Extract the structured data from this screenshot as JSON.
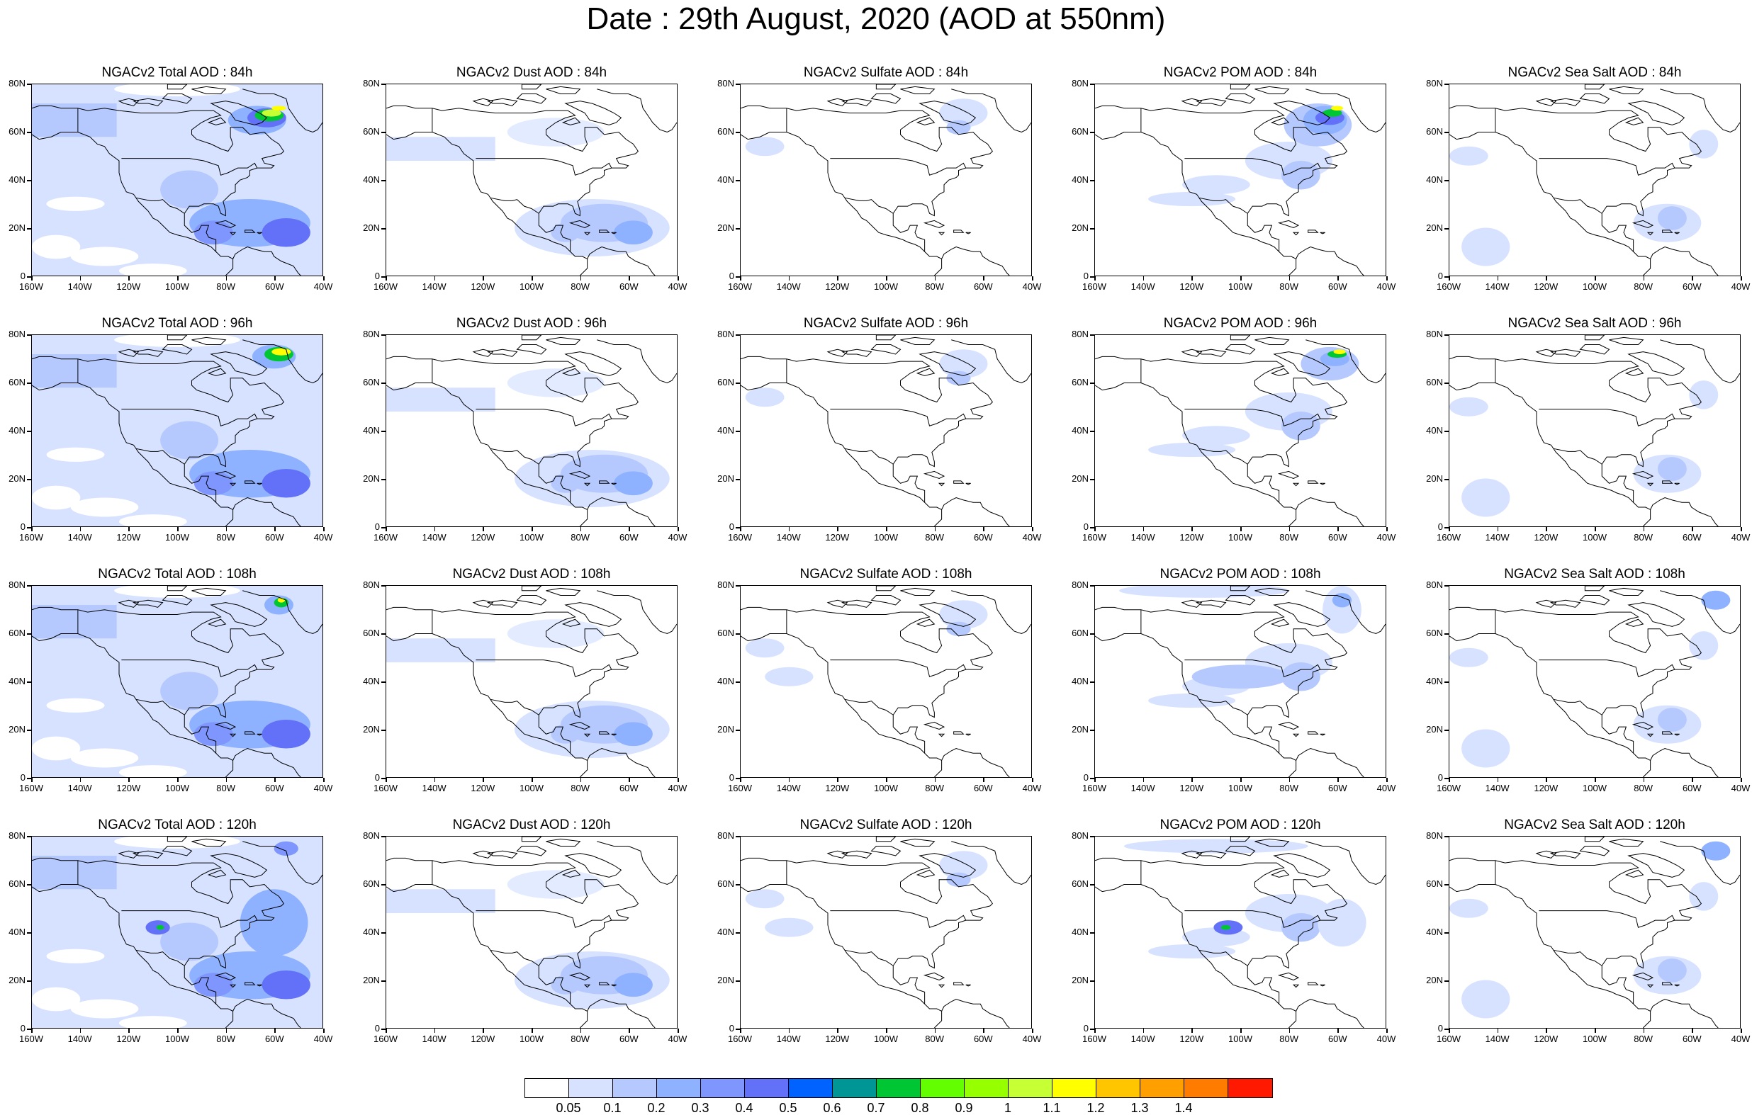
{
  "title": "Date : 29th August, 2020 (AOD at 550nm)",
  "columns": [
    "Total",
    "Dust",
    "Sulfate",
    "POM",
    "SeaSalt"
  ],
  "rows": [
    "84h",
    "96h",
    "108h",
    "120h"
  ],
  "panel_titles": [
    [
      "NGACv2 Total AOD : 84h",
      "NGACv2 Dust AOD : 84h",
      "NGACv2 Sulfate AOD : 84h",
      "NGACv2 POM AOD : 84h",
      "NGACv2 Sea Salt AOD : 84h"
    ],
    [
      "NGACv2 Total AOD : 96h",
      "NGACv2 Dust AOD : 96h",
      "NGACv2 Sulfate AOD : 96h",
      "NGACv2 POM AOD : 96h",
      "NGACv2 Sea Salt AOD : 96h"
    ],
    [
      "NGACv2 Total AOD : 108h",
      "NGACv2 Dust AOD : 108h",
      "NGACv2 Sulfate AOD : 108h",
      "NGACv2 POM AOD : 108h",
      "NGACv2 Sea Salt AOD : 108h"
    ],
    [
      "NGACv2 Total AOD : 120h",
      "NGACv2 Dust AOD : 120h",
      "NGACv2 Sulfate AOD : 120h",
      "NGACv2 POM AOD : 120h",
      "NGACv2 Sea Salt  AOD : 120h"
    ]
  ],
  "lat_labels": [
    "80N",
    "60N",
    "40N",
    "20N",
    "0"
  ],
  "lon_labels_a": [
    "160W",
    "140W",
    "120W",
    "100W",
    "80W",
    "60W",
    "40W"
  ],
  "lon_labels_b": [
    "160W",
    "140W",
    "120W",
    "100W",
    "80W",
    "60W",
    "40W"
  ],
  "colorbar": {
    "colors": [
      "#ffffff",
      "#d6e2ff",
      "#b5c9ff",
      "#8eb2ff",
      "#7f96ff",
      "#6370f8",
      "#0063ff",
      "#009696",
      "#00c633",
      "#63ff00",
      "#96ff00",
      "#c6ff33",
      "#ffff00",
      "#ffc600",
      "#ffa000",
      "#ff7c00",
      "#ff1900"
    ],
    "labels": [
      "0.05",
      "0.1",
      "0.2",
      "0.3",
      "0.4",
      "0.5",
      "0.6",
      "0.7",
      "0.8",
      "0.9",
      "1",
      "1.1",
      "1.2",
      "1.3",
      "1.4"
    ]
  },
  "map_colors": {
    "light": "#d6e2ff",
    "medium": "#b5c9ff",
    "mid": "#8eb2ff",
    "strong": "#7f96ff",
    "deep": "#6370f8",
    "green": "#00c633",
    "yellowgreen": "#c6ff33",
    "yellow": "#ffff00",
    "coast": "#000000"
  }
}
